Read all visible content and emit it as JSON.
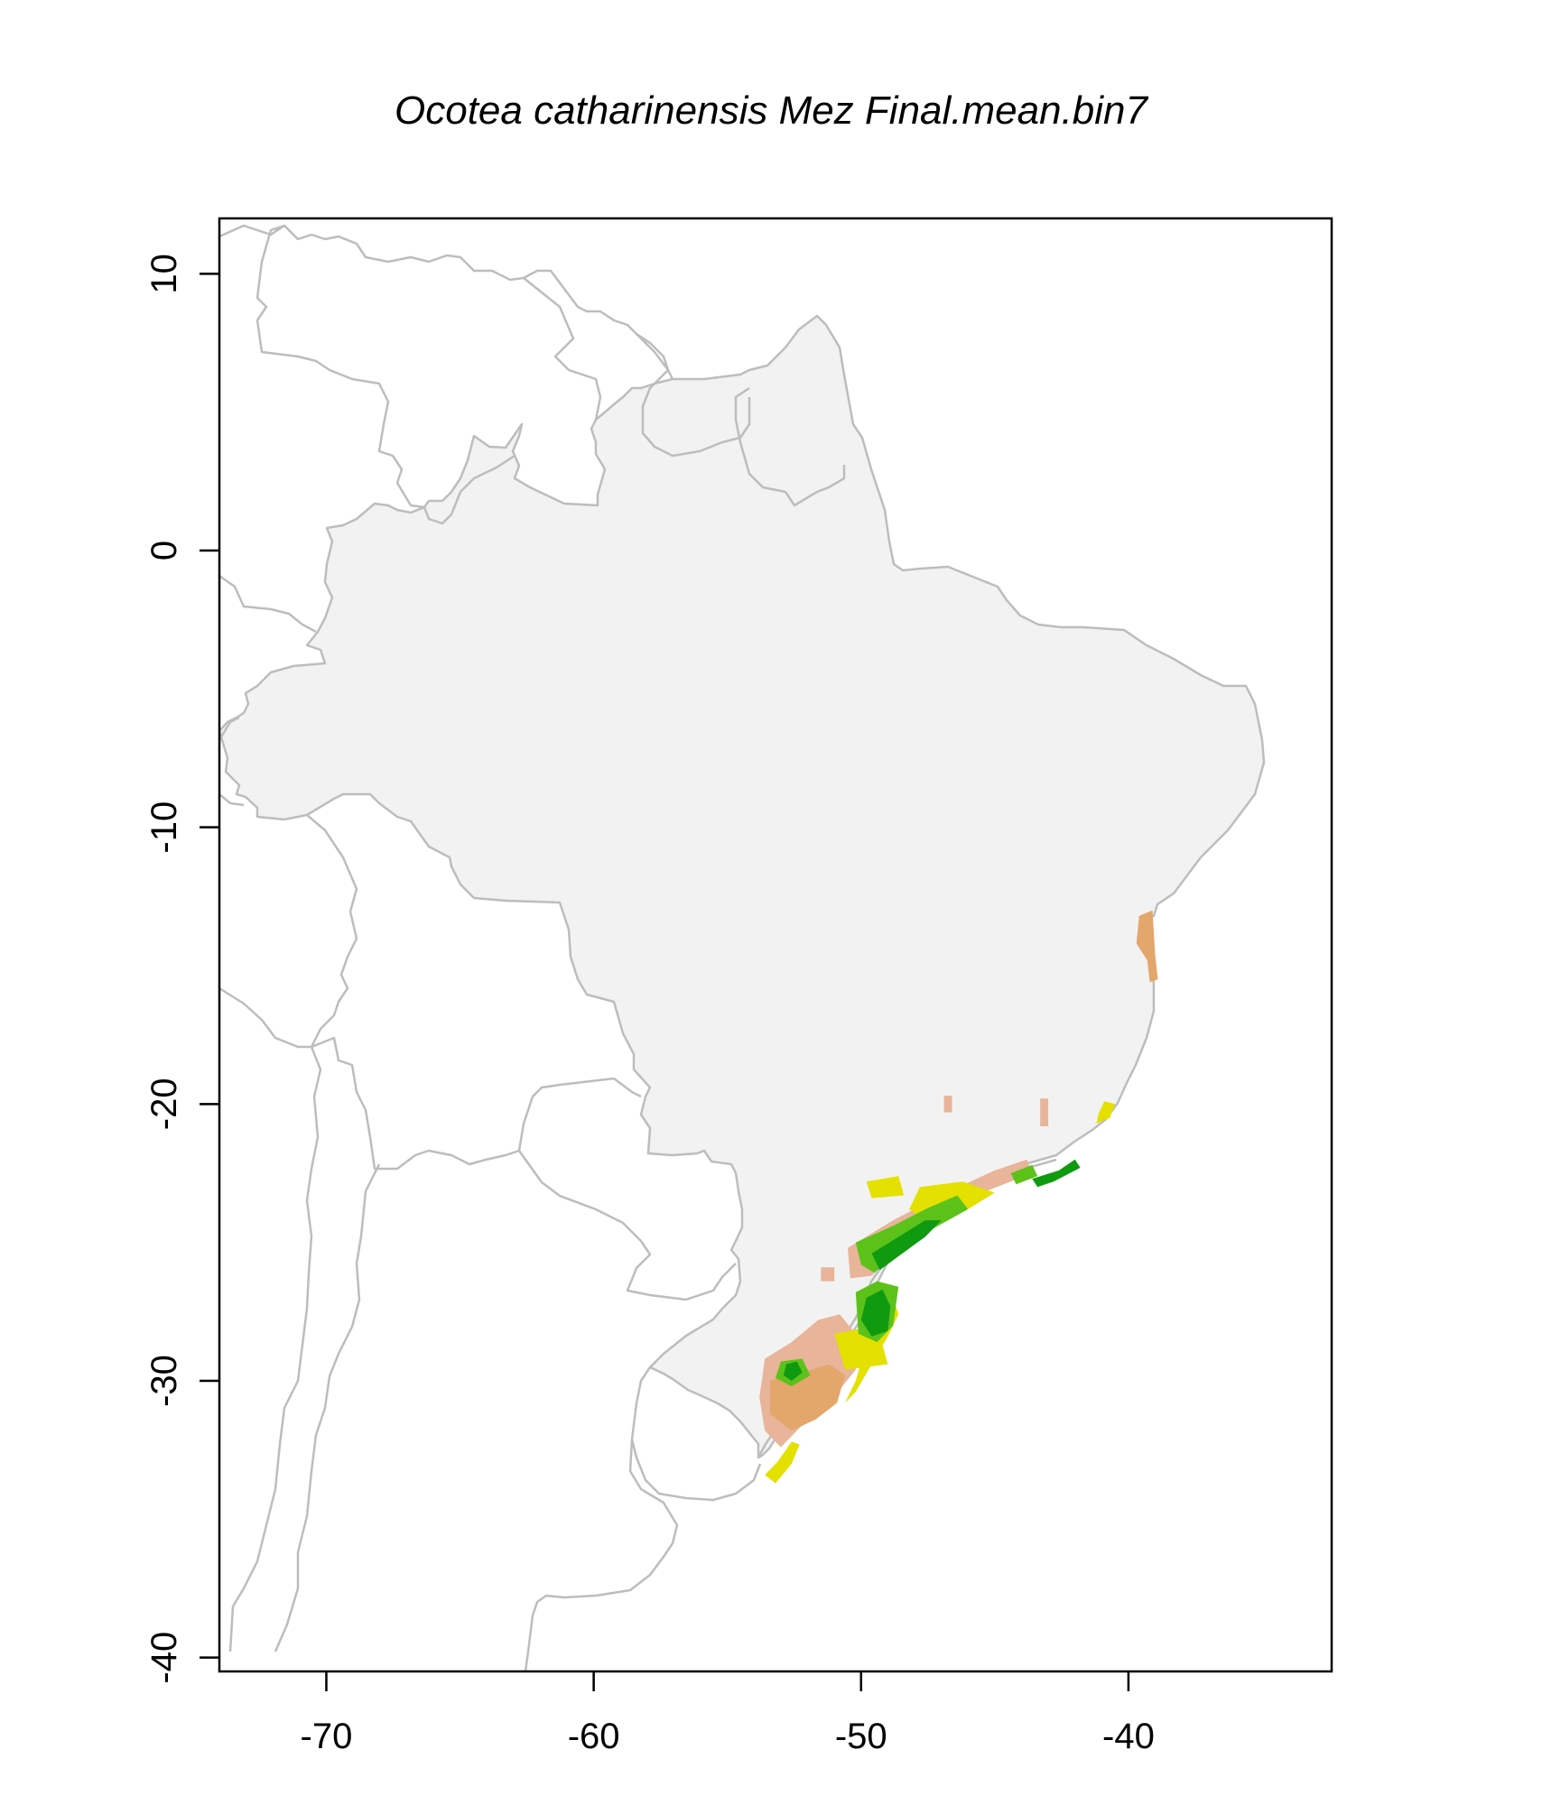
{
  "title": "Ocotea catharinensis Mez Final.mean.bin7",
  "chart_data": {
    "type": "map",
    "title": "Ocotea catharinensis Mez Final.mean.bin7",
    "xlabel": "",
    "ylabel": "",
    "xlim": [
      -74,
      -32.4
    ],
    "ylim": [
      -40.5,
      12
    ],
    "x_ticks": [
      -70,
      -60,
      -50,
      -40
    ],
    "x_tick_labels": [
      "-70",
      "-60",
      "-50",
      "-40"
    ],
    "y_ticks": [
      10,
      0,
      -10,
      -20,
      -30,
      -40
    ],
    "y_tick_labels": [
      "10",
      "0",
      "-10",
      "-20",
      "-30",
      "-40"
    ],
    "grid": false,
    "legend": "none",
    "colors": {
      "background_region": "#f2f2f2",
      "borders": "#bdbdbd",
      "very_low": "#e8b49a",
      "low": "#e3a66b",
      "medium": "#e4e000",
      "high": "#5cc21a",
      "very_high": "#0f9a10"
    },
    "suitability_patches": [
      {
        "class": "very_low",
        "points": [
          [
            -53.6,
            -29.2
          ],
          [
            -52.6,
            -28.6
          ],
          [
            -51.6,
            -27.8
          ],
          [
            -50.8,
            -27.6
          ],
          [
            -50.2,
            -28.3
          ],
          [
            -50.2,
            -29.6
          ],
          [
            -51.2,
            -30.8
          ],
          [
            -52.2,
            -31.6
          ],
          [
            -53.0,
            -32.4
          ],
          [
            -53.6,
            -31.8
          ],
          [
            -53.8,
            -30.6
          ]
        ]
      },
      {
        "class": "very_low",
        "points": [
          [
            -51.5,
            -25.9
          ],
          [
            -51.0,
            -25.9
          ],
          [
            -51.0,
            -26.4
          ],
          [
            -51.5,
            -26.4
          ]
        ]
      },
      {
        "class": "very_low",
        "points": [
          [
            -50.5,
            -25.2
          ],
          [
            -48.8,
            -24.2
          ],
          [
            -46.8,
            -23.2
          ],
          [
            -45.0,
            -22.4
          ],
          [
            -43.8,
            -22.0
          ],
          [
            -43.6,
            -22.5
          ],
          [
            -45.2,
            -23.1
          ],
          [
            -47.2,
            -24.0
          ],
          [
            -48.6,
            -25.1
          ],
          [
            -49.6,
            -26.2
          ],
          [
            -50.4,
            -26.3
          ]
        ]
      },
      {
        "class": "very_low",
        "points": [
          [
            -46.9,
            -19.7
          ],
          [
            -46.6,
            -19.7
          ],
          [
            -46.6,
            -20.3
          ],
          [
            -46.9,
            -20.3
          ]
        ]
      },
      {
        "class": "very_low",
        "points": [
          [
            -43.3,
            -19.8
          ],
          [
            -43.0,
            -19.8
          ],
          [
            -43.0,
            -20.8
          ],
          [
            -43.3,
            -20.8
          ]
        ]
      },
      {
        "class": "low",
        "points": [
          [
            -39.6,
            -13.2
          ],
          [
            -39.1,
            -13.0
          ],
          [
            -39.0,
            -14.6
          ],
          [
            -38.9,
            -15.5
          ],
          [
            -39.2,
            -15.6
          ],
          [
            -39.3,
            -14.8
          ],
          [
            -39.7,
            -14.2
          ]
        ]
      },
      {
        "class": "low",
        "points": [
          [
            -53.4,
            -30.0
          ],
          [
            -52.2,
            -29.7
          ],
          [
            -51.2,
            -29.4
          ],
          [
            -50.6,
            -29.8
          ],
          [
            -50.9,
            -30.8
          ],
          [
            -51.7,
            -31.4
          ],
          [
            -52.6,
            -31.8
          ],
          [
            -53.4,
            -31.2
          ]
        ]
      },
      {
        "class": "medium",
        "points": [
          [
            -53.6,
            -33.4
          ],
          [
            -53.1,
            -32.9
          ],
          [
            -52.6,
            -32.2
          ],
          [
            -52.3,
            -32.3
          ],
          [
            -52.6,
            -33.0
          ],
          [
            -53.2,
            -33.7
          ]
        ]
      },
      {
        "class": "medium",
        "points": [
          [
            -50.6,
            -30.8
          ],
          [
            -50.2,
            -30.0
          ],
          [
            -49.9,
            -29.0
          ],
          [
            -49.5,
            -28.2
          ],
          [
            -49.2,
            -27.4
          ],
          [
            -48.8,
            -27.0
          ],
          [
            -48.6,
            -27.6
          ],
          [
            -49.0,
            -28.4
          ],
          [
            -49.6,
            -29.4
          ],
          [
            -50.2,
            -30.4
          ]
        ]
      },
      {
        "class": "medium",
        "points": [
          [
            -47.8,
            -23.0
          ],
          [
            -46.2,
            -22.8
          ],
          [
            -45.0,
            -23.2
          ],
          [
            -46.0,
            -23.8
          ],
          [
            -47.6,
            -24.2
          ],
          [
            -48.2,
            -23.8
          ]
        ]
      },
      {
        "class": "medium",
        "points": [
          [
            -49.8,
            -22.8
          ],
          [
            -48.6,
            -22.6
          ],
          [
            -48.4,
            -23.3
          ],
          [
            -49.6,
            -23.4
          ]
        ]
      },
      {
        "class": "medium",
        "points": [
          [
            -40.9,
            -19.9
          ],
          [
            -40.5,
            -20.0
          ],
          [
            -40.7,
            -20.5
          ],
          [
            -41.2,
            -20.7
          ],
          [
            -41.1,
            -20.3
          ]
        ]
      },
      {
        "class": "medium",
        "points": [
          [
            -51.0,
            -28.3
          ],
          [
            -49.4,
            -28.0
          ],
          [
            -49.0,
            -29.4
          ],
          [
            -50.6,
            -29.6
          ]
        ]
      },
      {
        "class": "high",
        "points": [
          [
            -50.2,
            -25.0
          ],
          [
            -48.8,
            -24.4
          ],
          [
            -47.6,
            -23.8
          ],
          [
            -46.4,
            -23.3
          ],
          [
            -46.0,
            -23.8
          ],
          [
            -47.3,
            -24.5
          ],
          [
            -48.6,
            -25.3
          ],
          [
            -49.5,
            -26.1
          ],
          [
            -50.0,
            -25.8
          ]
        ]
      },
      {
        "class": "high",
        "points": [
          [
            -50.2,
            -26.8
          ],
          [
            -49.4,
            -26.4
          ],
          [
            -48.6,
            -26.6
          ],
          [
            -48.8,
            -28.0
          ],
          [
            -49.4,
            -28.6
          ],
          [
            -50.1,
            -28.3
          ]
        ]
      },
      {
        "class": "high",
        "points": [
          [
            -53.0,
            -29.3
          ],
          [
            -52.2,
            -29.2
          ],
          [
            -51.9,
            -29.8
          ],
          [
            -52.6,
            -30.2
          ],
          [
            -53.2,
            -29.9
          ]
        ]
      },
      {
        "class": "very_high",
        "points": [
          [
            -49.6,
            -25.4
          ],
          [
            -48.6,
            -24.8
          ],
          [
            -47.6,
            -24.2
          ],
          [
            -47.0,
            -24.2
          ],
          [
            -47.6,
            -24.8
          ],
          [
            -48.6,
            -25.5
          ],
          [
            -49.3,
            -26.0
          ]
        ]
      },
      {
        "class": "very_high",
        "points": [
          [
            -49.8,
            -27.0
          ],
          [
            -49.2,
            -26.7
          ],
          [
            -48.9,
            -27.3
          ],
          [
            -49.0,
            -28.2
          ],
          [
            -49.6,
            -28.4
          ],
          [
            -50.0,
            -27.8
          ]
        ]
      },
      {
        "class": "very_high",
        "points": [
          [
            -52.8,
            -29.4
          ],
          [
            -52.4,
            -29.3
          ],
          [
            -52.2,
            -29.7
          ],
          [
            -52.6,
            -30.0
          ],
          [
            -52.9,
            -29.8
          ]
        ]
      },
      {
        "class": "very_high",
        "points": [
          [
            -43.6,
            -22.7
          ],
          [
            -42.6,
            -22.4
          ],
          [
            -42.0,
            -22.0
          ],
          [
            -41.8,
            -22.3
          ],
          [
            -42.8,
            -22.8
          ],
          [
            -43.4,
            -23.0
          ]
        ]
      },
      {
        "class": "high",
        "points": [
          [
            -44.4,
            -22.5
          ],
          [
            -43.6,
            -22.2
          ],
          [
            -43.4,
            -22.6
          ],
          [
            -44.2,
            -22.9
          ]
        ]
      }
    ]
  }
}
